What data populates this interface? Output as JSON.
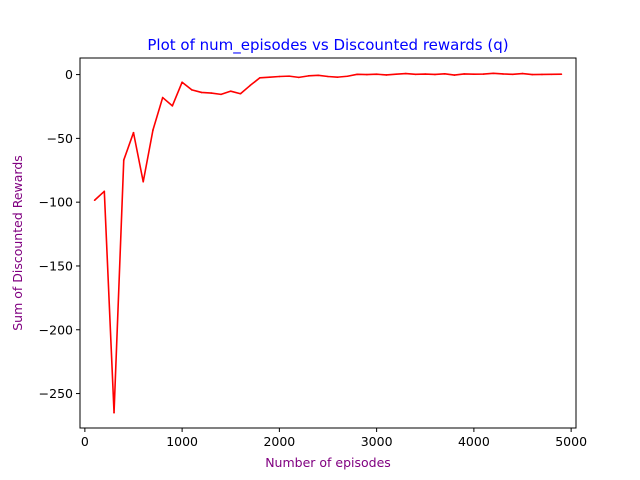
{
  "chart_data": {
    "type": "line",
    "title": "Plot of num_episodes vs Discounted rewards (q)",
    "xlabel": "Number of episodes",
    "ylabel": "Sum of Discounted Rewards",
    "xlim": [
      -50,
      5050
    ],
    "ylim": [
      -277,
      13
    ],
    "xticks": [
      0,
      1000,
      2000,
      3000,
      4000,
      5000
    ],
    "yticks": [
      0,
      -50,
      -100,
      -150,
      -200,
      -250
    ],
    "grid": false,
    "legend": "none",
    "colors": {
      "title": "#0000ff",
      "axis_labels": "#800080",
      "line": "#ff0000"
    },
    "series": [
      {
        "x": [
          100,
          200,
          300,
          400,
          500,
          600,
          700,
          800,
          900,
          1000,
          1100,
          1200,
          1300,
          1400,
          1500,
          1600,
          1700,
          1800,
          1900,
          2000,
          2100,
          2200,
          2300,
          2400,
          2500,
          2600,
          2700,
          2800,
          2900,
          3000,
          3100,
          3200,
          3300,
          3400,
          3500,
          3600,
          3700,
          3800,
          3900,
          4000,
          4100,
          4200,
          4300,
          4400,
          4500,
          4600,
          4700,
          4800,
          4900
        ],
        "values": [
          -98.5,
          -91.5,
          -265,
          -67,
          -45.5,
          -84,
          -43.5,
          -18,
          -24.5,
          -6,
          -12,
          -14,
          -14.5,
          -15.5,
          -13,
          -15,
          -8.5,
          -2.5,
          -2,
          -1.5,
          -1.2,
          -2.2,
          -1,
          -0.6,
          -1.5,
          -2,
          -1.3,
          0.2,
          0,
          0.3,
          -0.3,
          0.3,
          0.8,
          0.2,
          0.4,
          0.1,
          0.6,
          -0.4,
          0.5,
          0.3,
          0.4,
          1.0,
          0.5,
          0.2,
          0.8,
          0,
          0.1,
          0.2,
          0.3
        ]
      }
    ]
  }
}
